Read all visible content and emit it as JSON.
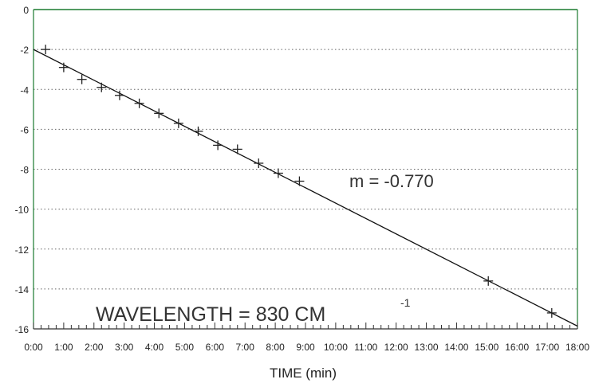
{
  "chart_data": {
    "type": "scatter",
    "xlabel": "TIME (min)",
    "ylabel": "",
    "xlim": [
      0,
      18
    ],
    "ylim": [
      -16,
      0
    ],
    "x_tick_labels": [
      "0:00",
      "1:00",
      "2:00",
      "3:00",
      "4:00",
      "5:00",
      "6:00",
      "7:00",
      "8:00",
      "9:00",
      "10:00",
      "11:00",
      "12:00",
      "13:00",
      "14:00",
      "15:00",
      "16:00",
      "17:00",
      "18:00"
    ],
    "y_ticks": [
      0,
      -2,
      -4,
      -6,
      -8,
      -10,
      -12,
      -14,
      -16
    ],
    "y_tick_labels": [
      "0",
      "-2",
      "-4",
      "-6",
      "-8",
      "-10",
      "-12",
      "-14",
      "-16"
    ],
    "grid": "horizontal dotted",
    "points": [
      {
        "x": 0.4,
        "y": -2.0
      },
      {
        "x": 1.0,
        "y": -2.9
      },
      {
        "x": 1.6,
        "y": -3.5
      },
      {
        "x": 2.25,
        "y": -3.9
      },
      {
        "x": 2.85,
        "y": -4.3
      },
      {
        "x": 3.5,
        "y": -4.7
      },
      {
        "x": 4.15,
        "y": -5.2
      },
      {
        "x": 4.8,
        "y": -5.7
      },
      {
        "x": 5.45,
        "y": -6.1
      },
      {
        "x": 6.1,
        "y": -6.8
      },
      {
        "x": 6.75,
        "y": -7.0
      },
      {
        "x": 7.45,
        "y": -7.7
      },
      {
        "x": 8.1,
        "y": -8.2
      },
      {
        "x": 8.8,
        "y": -8.6
      },
      {
        "x": 15.05,
        "y": -13.6
      },
      {
        "x": 17.15,
        "y": -15.2
      }
    ],
    "fit_line": {
      "x": [
        0.0,
        18.0
      ],
      "y": [
        -2.0,
        -15.86
      ]
    },
    "annotations": {
      "slope": "m = -0.770",
      "wavelength": "WAVELENGTH = 830 CM",
      "wavelength_sup": "-1"
    },
    "colors": {
      "axis": "#1a7a2e",
      "fit_line": "#111111",
      "markers": "#222222",
      "grid": "#666666"
    }
  }
}
